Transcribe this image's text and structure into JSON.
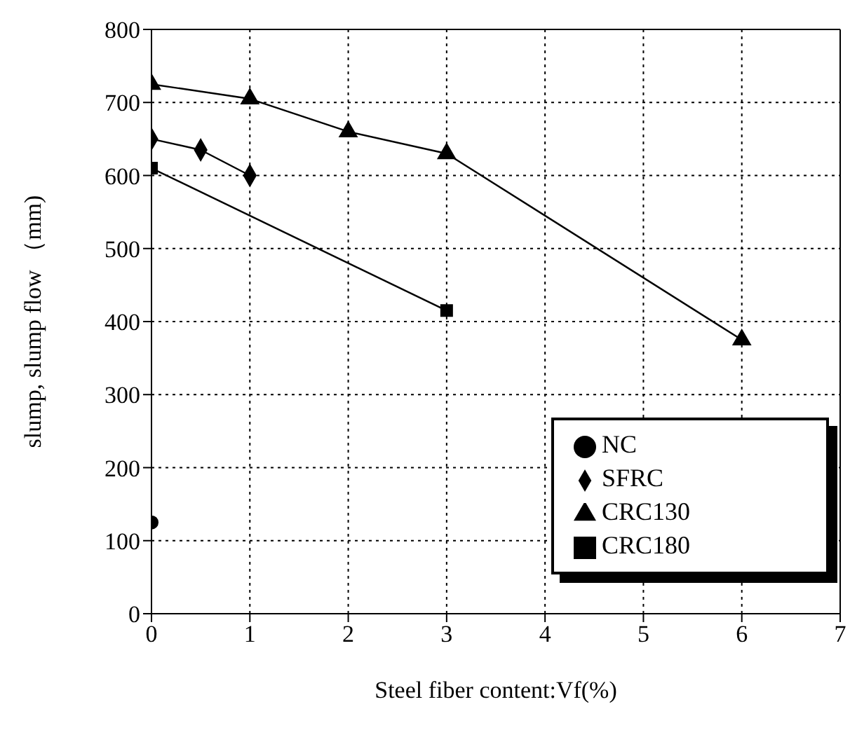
{
  "chart_data": {
    "type": "scatter",
    "xlabel": "Steel fiber content:Vf(%)",
    "ylabel": "slump, slump flow （mm)",
    "xlim": [
      0,
      7
    ],
    "xticks": [
      0,
      1,
      2,
      3,
      4,
      5,
      6,
      7
    ],
    "ylim": [
      0,
      800
    ],
    "yticks": [
      0,
      100,
      200,
      300,
      400,
      500,
      600,
      700,
      800
    ],
    "grid": true,
    "legend": "bottom right",
    "line_style": "solid",
    "series": [
      {
        "name": "NC",
        "type": "scatter",
        "marker": "circle",
        "color": "#000000",
        "x": [
          0
        ],
        "values": [
          125
        ]
      },
      {
        "name": "SFRC",
        "type": "line",
        "marker": "diamond",
        "color": "#000000",
        "x": [
          0,
          0.5,
          1
        ],
        "values": [
          650,
          635,
          600
        ]
      },
      {
        "name": "CRC130",
        "type": "line",
        "marker": "triangle",
        "color": "#000000",
        "x": [
          0,
          1,
          2,
          3,
          6
        ],
        "values": [
          725,
          705,
          660,
          630,
          375
        ]
      },
      {
        "name": "CRC180",
        "type": "line",
        "marker": "square",
        "color": "#000000",
        "x": [
          0,
          3
        ],
        "values": [
          610,
          415
        ]
      }
    ]
  }
}
